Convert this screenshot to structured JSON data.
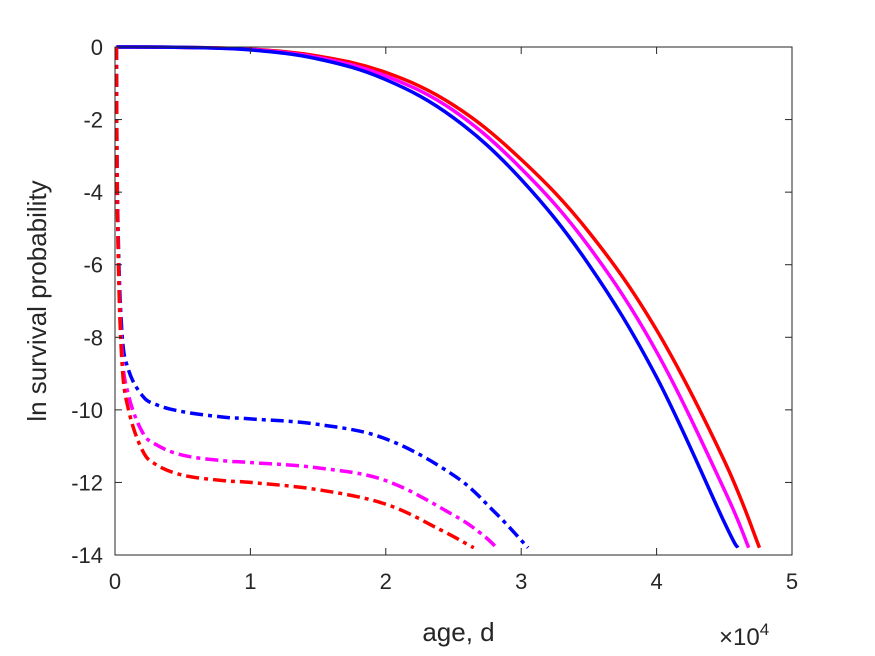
{
  "chart_data": {
    "type": "line",
    "title": "",
    "xlabel": "age, d",
    "ylabel": "ln survival probability",
    "x_multiplier_label": {
      "base": "×10",
      "exponent": "4"
    },
    "xlim": [
      0,
      5
    ],
    "ylim": [
      -14,
      0
    ],
    "x_ticks": [
      "0",
      "1",
      "2",
      "3",
      "4",
      "5"
    ],
    "y_ticks": [
      "0",
      "-2",
      "-4",
      "-6",
      "-8",
      "-10",
      "-12",
      "-14"
    ],
    "grid": false,
    "legend": "none",
    "series": [
      {
        "color": "#ff0000",
        "style": "solid",
        "x": [
          0.01,
          0.5,
          1.0,
          1.5,
          2.0,
          2.5,
          3.0,
          3.5,
          4.0,
          4.5,
          4.76
        ],
        "y": [
          0,
          -0.01,
          -0.06,
          -0.25,
          -0.7,
          -1.6,
          -3.1,
          -5.1,
          -7.8,
          -11.4,
          -13.8
        ]
      },
      {
        "color": "#ff00ff",
        "style": "solid",
        "x": [
          0.01,
          0.5,
          1.0,
          1.5,
          2.0,
          2.5,
          3.0,
          3.5,
          4.0,
          4.5,
          4.68
        ],
        "y": [
          0,
          -0.01,
          -0.07,
          -0.29,
          -0.8,
          -1.75,
          -3.35,
          -5.5,
          -8.4,
          -12.2,
          -13.8
        ]
      },
      {
        "color": "#0000ff",
        "style": "solid",
        "x": [
          0.01,
          0.5,
          1.0,
          1.5,
          2.0,
          2.5,
          3.0,
          3.5,
          4.0,
          4.5,
          4.6
        ],
        "y": [
          0,
          -0.01,
          -0.08,
          -0.33,
          -0.9,
          -1.95,
          -3.65,
          -6.0,
          -9.1,
          -13.1,
          -13.8
        ]
      },
      {
        "color": "#0000ff",
        "style": "dashdot",
        "x": [
          0.01,
          0.02,
          0.05,
          0.1,
          0.2,
          0.3,
          0.5,
          0.8,
          1.0,
          1.5,
          2.0,
          2.5,
          2.8,
          3.05
        ],
        "y": [
          0,
          -4.5,
          -7.8,
          -8.9,
          -9.6,
          -9.85,
          -10.05,
          -10.2,
          -10.25,
          -10.4,
          -10.8,
          -11.8,
          -12.8,
          -13.8
        ]
      },
      {
        "color": "#ff00ff",
        "style": "dashdot",
        "x": [
          0.01,
          0.02,
          0.05,
          0.1,
          0.2,
          0.3,
          0.5,
          0.8,
          1.0,
          1.5,
          2.0,
          2.5,
          2.7,
          2.82
        ],
        "y": [
          0,
          -4.8,
          -8.3,
          -9.6,
          -10.6,
          -10.95,
          -11.25,
          -11.4,
          -11.45,
          -11.6,
          -11.95,
          -12.9,
          -13.4,
          -13.8
        ]
      },
      {
        "color": "#ff0000",
        "style": "dashdot",
        "x": [
          0.01,
          0.02,
          0.05,
          0.1,
          0.2,
          0.3,
          0.5,
          0.8,
          1.0,
          1.5,
          2.0,
          2.4,
          2.6,
          2.65
        ],
        "y": [
          0,
          -5.0,
          -8.6,
          -10.0,
          -11.1,
          -11.5,
          -11.8,
          -11.95,
          -12.0,
          -12.2,
          -12.6,
          -13.3,
          -13.7,
          -13.8
        ]
      }
    ]
  }
}
